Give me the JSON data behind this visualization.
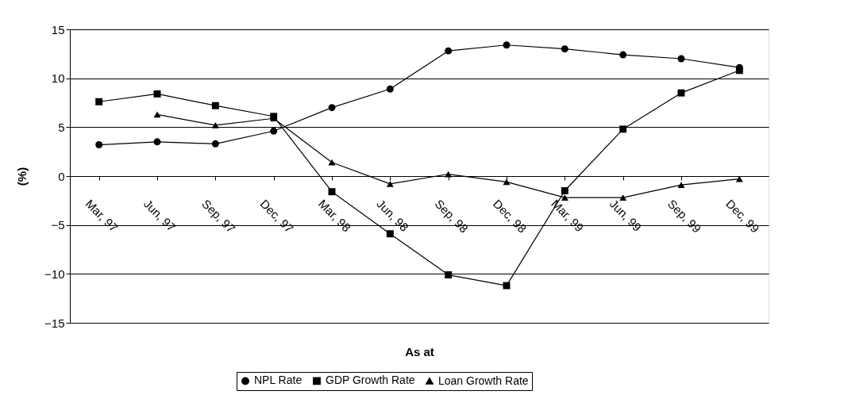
{
  "chart_data": {
    "type": "line",
    "xlabel": "As at",
    "ylabel": "(%)",
    "categories": [
      "Mar, 97",
      "Jun, 97",
      "Sep, 97",
      "Dec, 97",
      "Mar, 98",
      "Jun, 98",
      "Sep, 98",
      "Dec, 98",
      "Mar, 99",
      "Jun, 99",
      "Sep, 99",
      "Dec, 99"
    ],
    "series": [
      {
        "name": "NPL Rate",
        "color": "#000000",
        "marker": "circle",
        "values": [
          3.2,
          3.5,
          3.3,
          4.6,
          7.0,
          8.9,
          12.8,
          13.4,
          13.0,
          12.4,
          12.0,
          11.1
        ]
      },
      {
        "name": "GDP Growth Rate",
        "color": "#000000",
        "marker": "square",
        "values": [
          7.6,
          8.4,
          7.2,
          6.1,
          -1.6,
          -5.9,
          -10.1,
          -11.2,
          -1.5,
          4.8,
          8.5,
          10.8
        ]
      },
      {
        "name": "Loan Growth Rate",
        "color": "#000000",
        "marker": "triangle",
        "values": [
          null,
          6.3,
          5.2,
          5.9,
          1.4,
          -0.8,
          0.2,
          -0.6,
          -2.2,
          -2.2,
          -0.9,
          -0.3
        ]
      }
    ],
    "ylim": [
      -15,
      15
    ],
    "yticks": [
      -15,
      -10,
      -5,
      0,
      5,
      10,
      15
    ],
    "grid": "y",
    "legend": "bottom",
    "line_style": "solid"
  }
}
